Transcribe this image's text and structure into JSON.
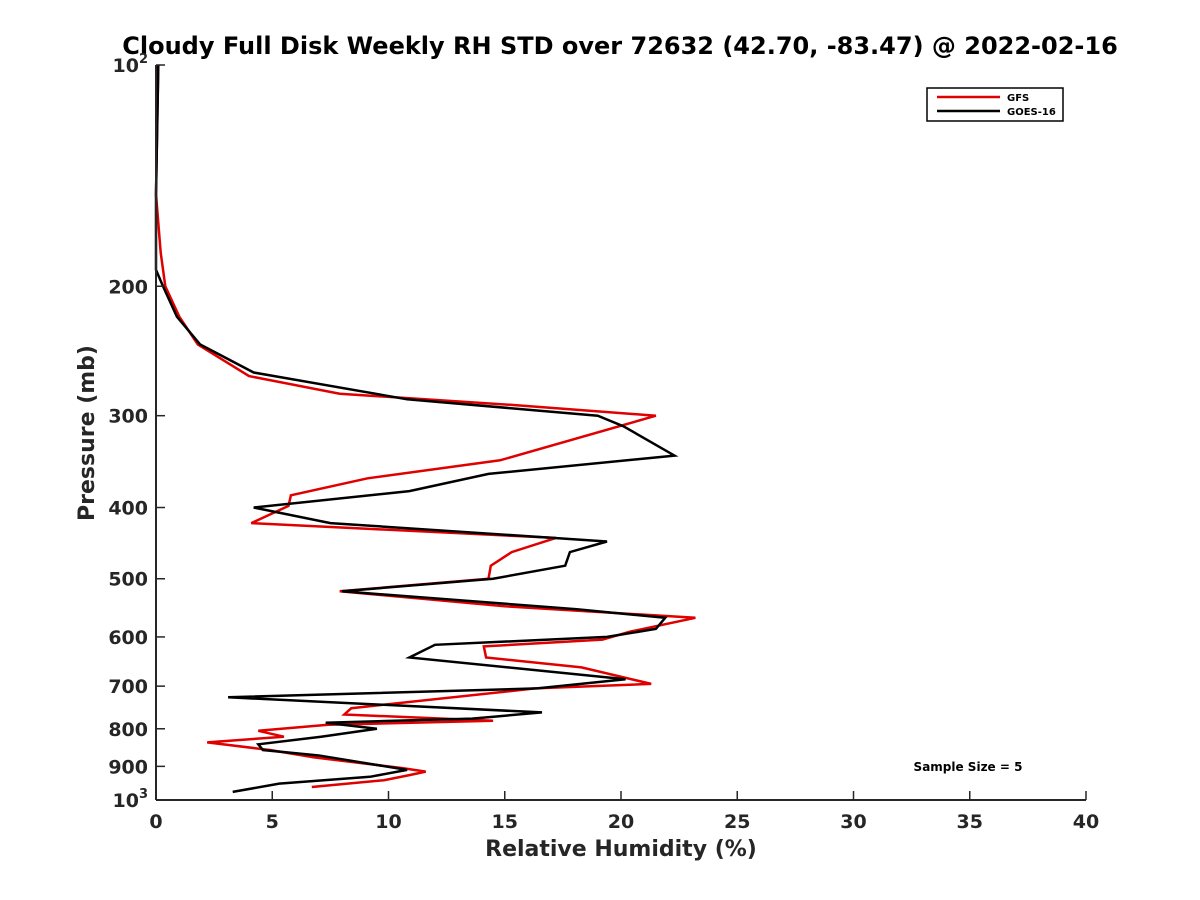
{
  "chart_data": {
    "type": "line",
    "title": "Cloudy Full Disk Weekly RH STD over 72632 (42.70, -83.47) @ 2022-02-16",
    "xlabel": "Relative Humidity (%)",
    "ylabel": "Pressure (mb)",
    "xlim": [
      0,
      40
    ],
    "ylim": [
      100,
      1000
    ],
    "y_scale": "log",
    "y_reversed": true,
    "grid": false,
    "legend_position": "top-right",
    "x_ticks": [
      "0",
      "5",
      "10",
      "15",
      "20",
      "25",
      "30",
      "35",
      "40"
    ],
    "y_ticks": [
      {
        "value": 100,
        "base": "10",
        "exp": "2"
      },
      {
        "value": 200,
        "label": "200"
      },
      {
        "value": 300,
        "label": "300"
      },
      {
        "value": 400,
        "label": "400"
      },
      {
        "value": 500,
        "label": "500"
      },
      {
        "value": 600,
        "label": "600"
      },
      {
        "value": 700,
        "label": "700"
      },
      {
        "value": 800,
        "label": "800"
      },
      {
        "value": 900,
        "label": "900"
      },
      {
        "value": 1000,
        "base": "10",
        "exp": "3"
      }
    ],
    "series": [
      {
        "name": "GFS",
        "color": "#e00000",
        "points": [
          [
            0.1,
            100
          ],
          [
            0.0,
            150
          ],
          [
            0.2,
            180
          ],
          [
            0.4,
            200
          ],
          [
            1.0,
            220
          ],
          [
            1.8,
            240
          ],
          [
            4.0,
            265
          ],
          [
            7.9,
            280
          ],
          [
            15.3,
            290
          ],
          [
            21.5,
            300
          ],
          [
            14.8,
            345
          ],
          [
            9.1,
            365
          ],
          [
            5.8,
            385
          ],
          [
            5.7,
            398
          ],
          [
            4.1,
            420
          ],
          [
            17.2,
            440
          ],
          [
            15.3,
            460
          ],
          [
            14.4,
            480
          ],
          [
            14.3,
            500
          ],
          [
            7.9,
            520
          ],
          [
            15.0,
            545
          ],
          [
            23.2,
            565
          ],
          [
            20.4,
            590
          ],
          [
            19.2,
            605
          ],
          [
            14.1,
            618
          ],
          [
            14.2,
            640
          ],
          [
            18.3,
            660
          ],
          [
            21.3,
            695
          ],
          [
            16.3,
            705
          ],
          [
            8.4,
            750
          ],
          [
            8.1,
            765
          ],
          [
            14.5,
            780
          ],
          [
            7.4,
            790
          ],
          [
            4.4,
            805
          ],
          [
            5.5,
            820
          ],
          [
            2.2,
            835
          ],
          [
            4.9,
            855
          ],
          [
            6.8,
            875
          ],
          [
            10.6,
            905
          ],
          [
            11.6,
            915
          ],
          [
            10.9,
            925
          ],
          [
            9.8,
            940
          ],
          [
            6.7,
            960
          ]
        ]
      },
      {
        "name": "GOES-16",
        "color": "#000000",
        "points": [
          [
            0.1,
            100
          ],
          [
            0.0,
            150
          ],
          [
            0.0,
            190
          ],
          [
            0.3,
            200
          ],
          [
            0.9,
            220
          ],
          [
            1.9,
            240
          ],
          [
            4.2,
            262
          ],
          [
            10.8,
            285
          ],
          [
            19.0,
            300
          ],
          [
            20.1,
            310
          ],
          [
            22.3,
            340
          ],
          [
            14.3,
            360
          ],
          [
            10.9,
            380
          ],
          [
            4.2,
            400
          ],
          [
            7.5,
            420
          ],
          [
            19.4,
            445
          ],
          [
            17.8,
            460
          ],
          [
            17.6,
            480
          ],
          [
            14.5,
            500
          ],
          [
            8.0,
            520
          ],
          [
            18.1,
            550
          ],
          [
            21.9,
            565
          ],
          [
            21.5,
            585
          ],
          [
            19.4,
            600
          ],
          [
            12.0,
            615
          ],
          [
            10.9,
            640
          ],
          [
            20.2,
            685
          ],
          [
            16.4,
            705
          ],
          [
            3.1,
            725
          ],
          [
            16.6,
            760
          ],
          [
            13.6,
            775
          ],
          [
            7.3,
            785
          ],
          [
            9.5,
            800
          ],
          [
            7.1,
            820
          ],
          [
            4.4,
            840
          ],
          [
            4.6,
            855
          ],
          [
            7.0,
            870
          ],
          [
            10.8,
            910
          ],
          [
            9.2,
            930
          ],
          [
            5.3,
            950
          ],
          [
            3.3,
            975
          ]
        ]
      }
    ],
    "annotations": [
      {
        "text": "Sample Size = 5"
      }
    ]
  }
}
